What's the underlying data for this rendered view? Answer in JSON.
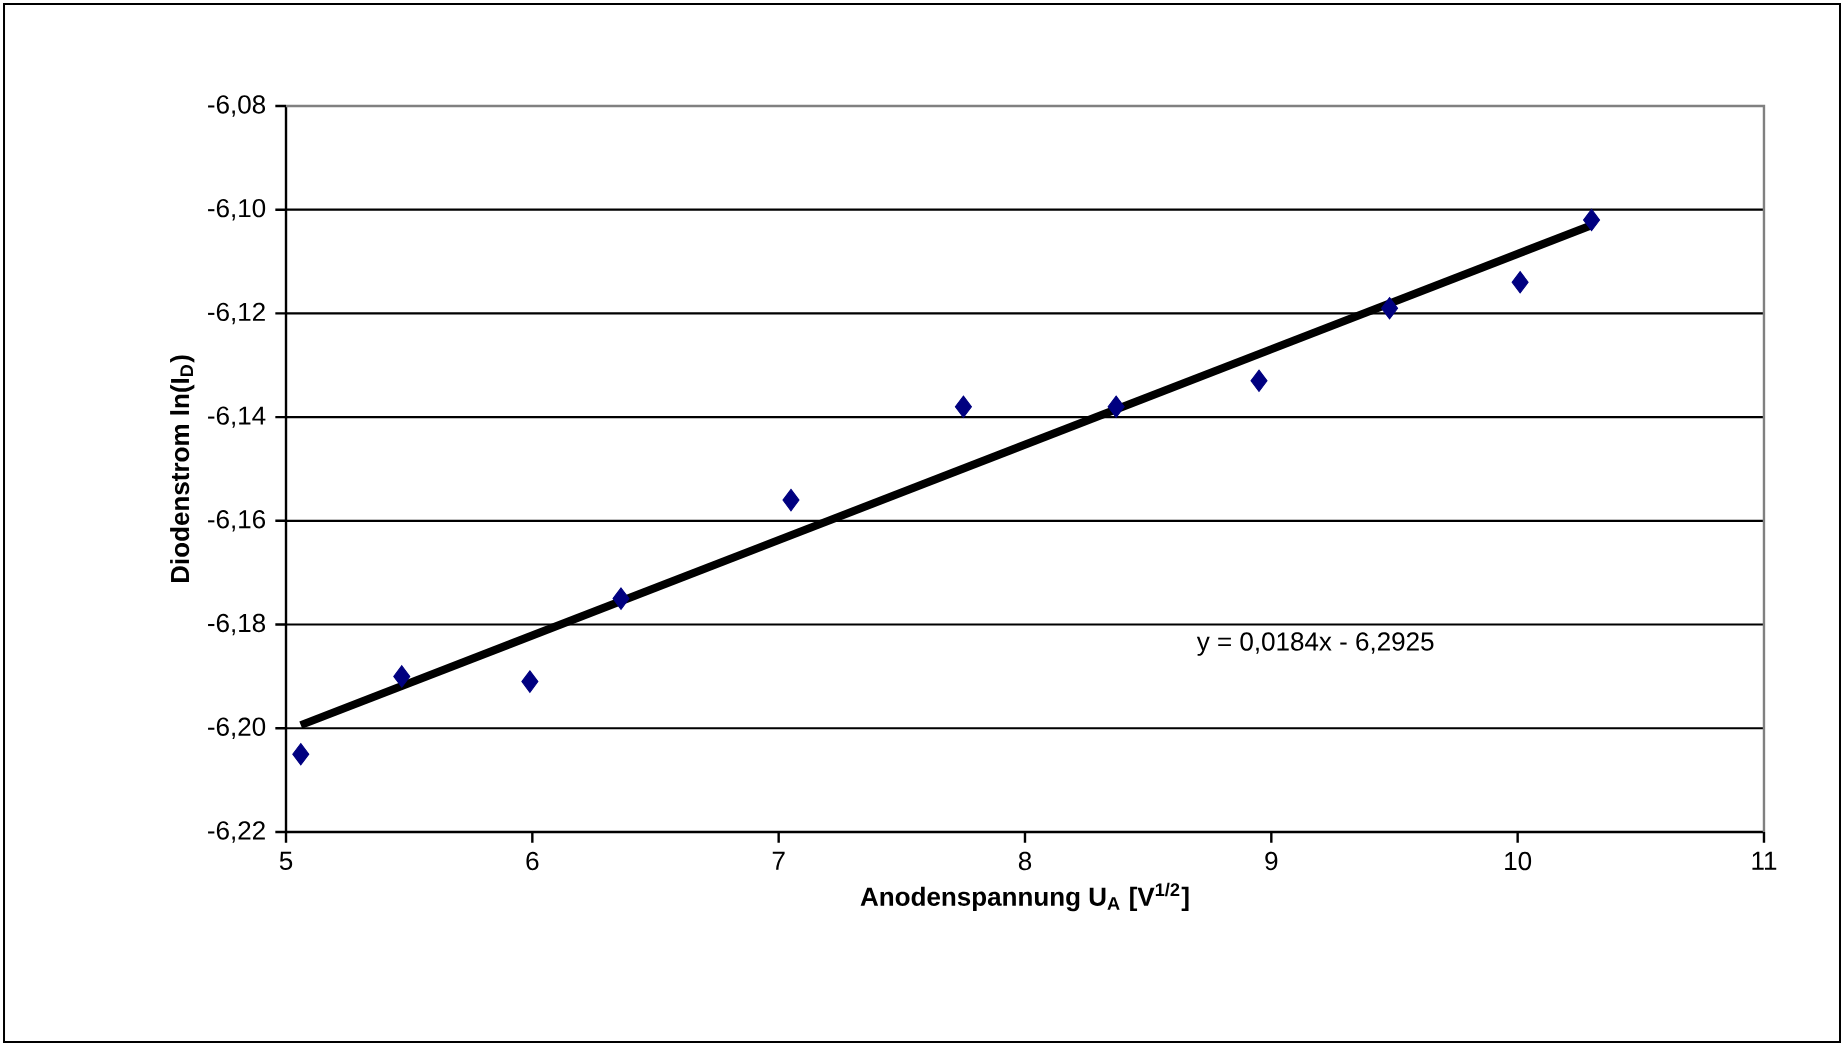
{
  "chart_data": {
    "type": "scatter",
    "xlabel": "Anodenspannung U$_{A}$ [V$^{1/2}$]",
    "ylabel": "Diodenstrom ln(I$_{D}$)",
    "annotations": [
      "y = 0,0184x - 6,2925"
    ],
    "xlim": [
      5,
      11
    ],
    "ylim": [
      -6.22,
      -6.08
    ],
    "xticks": [
      5,
      6,
      7,
      8,
      9,
      10,
      11
    ],
    "yticks": [
      {
        "value": -6.22,
        "label": "-6,22"
      },
      {
        "value": -6.2,
        "label": "-6,20"
      },
      {
        "value": -6.18,
        "label": "-6,18"
      },
      {
        "value": -6.16,
        "label": "-6,16"
      },
      {
        "value": -6.14,
        "label": "-6,14"
      },
      {
        "value": -6.12,
        "label": "-6,12"
      },
      {
        "value": -6.1,
        "label": "-6,10"
      },
      {
        "value": -6.08,
        "label": "-6,08"
      }
    ],
    "grid": "y",
    "marker": "diamond",
    "series": [
      {
        "color": "#000080",
        "x": [
          5.06,
          5.47,
          5.99,
          6.36,
          7.05,
          7.75,
          8.37,
          8.95,
          9.48,
          10.01,
          10.3
        ],
        "values": [
          -6.205,
          -6.19,
          -6.191,
          -6.175,
          -6.156,
          -6.138,
          -6.138,
          -6.133,
          -6.119,
          -6.114,
          -6.102
        ]
      },
      {
        "type": "line",
        "color": "#000000",
        "line_style": "solid",
        "marker": "none",
        "x": [
          5.06,
          10.3
        ],
        "values": [
          -6.1994,
          -6.103
        ]
      }
    ]
  }
}
